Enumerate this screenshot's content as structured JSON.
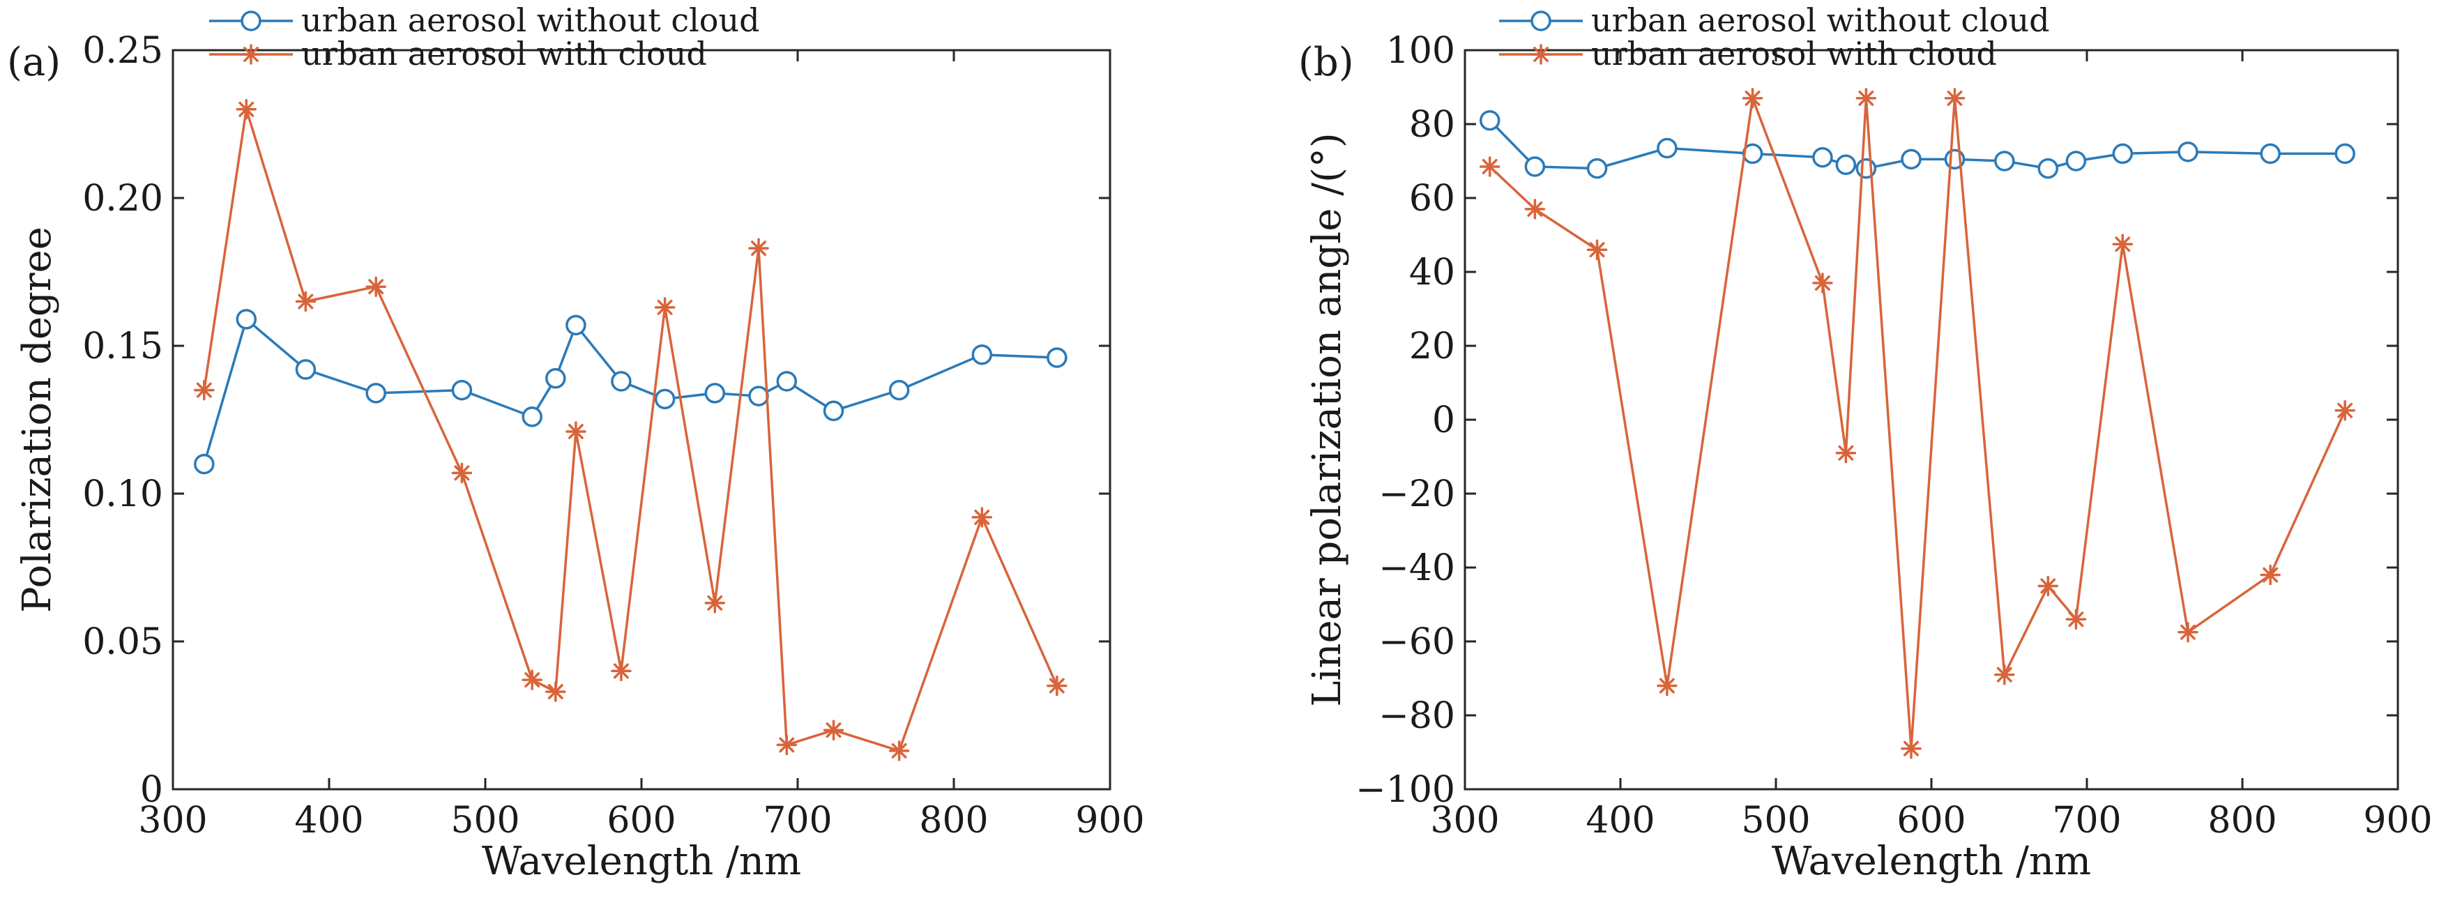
{
  "chart_data": [
    {
      "type": "line",
      "panel_label": "(a)",
      "title": "",
      "xlabel": "Wavelength /nm",
      "ylabel": "Polarization degree",
      "xlim": [
        300,
        900
      ],
      "ylim": [
        0,
        0.25
      ],
      "xticks": [
        300,
        400,
        500,
        600,
        700,
        800,
        900
      ],
      "yticks": [
        0,
        0.05,
        0.1,
        0.15,
        0.2,
        0.25
      ],
      "ytick_labels": [
        "0",
        "0.05",
        "0.10",
        "0.15",
        "0.20",
        "0.25"
      ],
      "grid": false,
      "legend_position": "top-left",
      "series": [
        {
          "name": "urban aerosol without cloud",
          "color": "#2a7ab8",
          "marker": "circle",
          "x": [
            320,
            347,
            385,
            430,
            485,
            530,
            545,
            558,
            587,
            615,
            647,
            675,
            693,
            723,
            765,
            818,
            866
          ],
          "y": [
            0.11,
            0.159,
            0.142,
            0.134,
            0.135,
            0.126,
            0.139,
            0.157,
            0.138,
            0.132,
            0.134,
            0.133,
            0.138,
            0.128,
            0.135,
            0.147,
            0.146
          ]
        },
        {
          "name": "urban aerosol with cloud",
          "color": "#d9643a",
          "marker": "asterisk",
          "x": [
            320,
            347,
            385,
            430,
            485,
            530,
            545,
            558,
            587,
            615,
            647,
            675,
            693,
            723,
            765,
            818,
            866
          ],
          "y": [
            0.135,
            0.23,
            0.165,
            0.17,
            0.107,
            0.037,
            0.033,
            0.121,
            0.04,
            0.163,
            0.063,
            0.183,
            0.015,
            0.02,
            0.013,
            0.092,
            0.035
          ]
        }
      ]
    },
    {
      "type": "line",
      "panel_label": "(b)",
      "title": "",
      "xlabel": "Wavelength /nm",
      "ylabel": "Linear polarization angle /(°)",
      "xlim": [
        300,
        900
      ],
      "ylim": [
        -100,
        100
      ],
      "xticks": [
        300,
        400,
        500,
        600,
        700,
        800,
        900
      ],
      "yticks": [
        -100,
        -80,
        -60,
        -40,
        -20,
        0,
        20,
        40,
        60,
        80,
        100
      ],
      "ytick_labels": [
        "−100",
        "−80",
        "−60",
        "−40",
        "−20",
        "0",
        "20",
        "40",
        "60",
        "80",
        "100"
      ],
      "grid": false,
      "legend_position": "top-left",
      "series": [
        {
          "name": "urban aerosol without cloud",
          "color": "#2a7ab8",
          "marker": "circle",
          "x": [
            316,
            345,
            385,
            430,
            485,
            530,
            545,
            558,
            587,
            615,
            647,
            675,
            693,
            723,
            765,
            818,
            866
          ],
          "y": [
            81,
            68.5,
            68,
            73.5,
            72,
            71,
            69,
            68,
            70.5,
            70.5,
            70,
            68,
            70,
            72,
            72.5,
            72,
            72
          ]
        },
        {
          "name": "urban aerosol with cloud",
          "color": "#d9643a",
          "marker": "asterisk",
          "x": [
            316,
            345,
            385,
            430,
            485,
            530,
            545,
            558,
            587,
            615,
            647,
            675,
            693,
            723,
            765,
            818,
            866
          ],
          "y": [
            68.5,
            57,
            46,
            -72,
            87,
            37,
            -9,
            87,
            -89,
            87,
            -69,
            -45,
            -54,
            47.5,
            -57.5,
            -42,
            2.5
          ]
        }
      ]
    }
  ]
}
